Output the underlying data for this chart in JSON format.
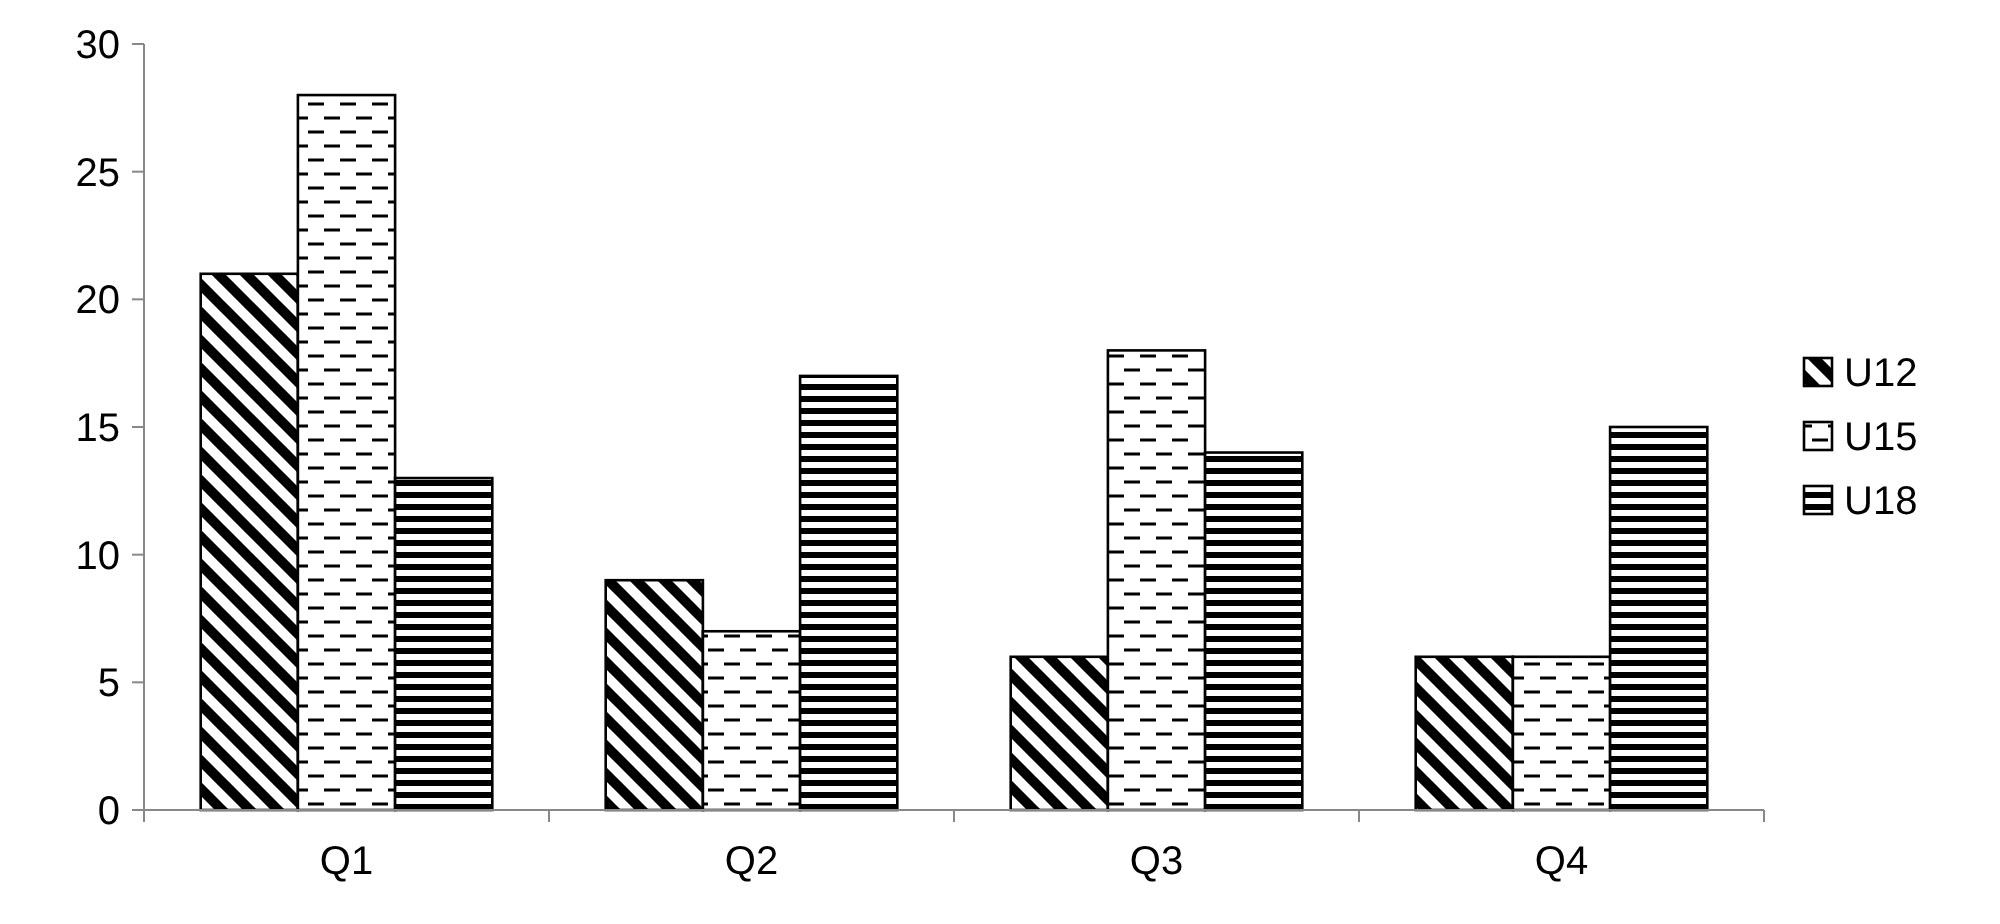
{
  "chart_data": {
    "type": "bar",
    "categories": [
      "Q1",
      "Q2",
      "Q3",
      "Q4"
    ],
    "series": [
      {
        "name": "U12",
        "color": "#000000",
        "values": [
          21,
          9,
          6,
          6
        ]
      },
      {
        "name": "U15",
        "color": "#000000",
        "values": [
          28,
          7,
          18,
          6
        ]
      },
      {
        "name": "U18",
        "color": "#000000",
        "values": [
          13,
          17,
          14,
          15
        ]
      }
    ],
    "ylim": [
      0,
      30
    ],
    "yticks": [
      0,
      5,
      10,
      15,
      20,
      25,
      30
    ],
    "grid": false,
    "legend": "right"
  }
}
